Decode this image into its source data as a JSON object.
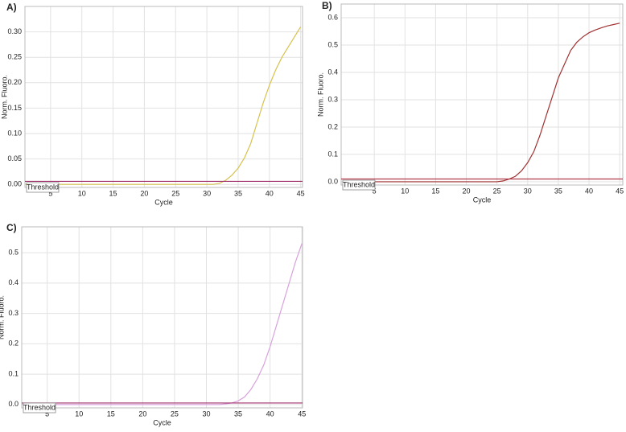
{
  "chart_data": [
    {
      "type": "line",
      "label": "A)",
      "xlabel": "Cycle",
      "ylabel": "Norm. Fluoro.",
      "xlim": [
        0.9,
        45.3
      ],
      "ylim": [
        -0.006,
        0.35
      ],
      "grid": true,
      "xticks": [
        5,
        10,
        15,
        20,
        25,
        30,
        35,
        40,
        45
      ],
      "yticks": [
        {
          "value": 0,
          "label": "0.00"
        },
        0.05,
        {
          "value": 0.1,
          "label": "0.10"
        },
        0.15,
        {
          "value": 0.2,
          "label": "0.20"
        },
        0.25,
        {
          "value": 0.3,
          "label": "0.30"
        }
      ],
      "threshold": {
        "label": "Threshold",
        "value": 0.006,
        "color": "#a0306a"
      },
      "x": [
        1,
        2,
        3,
        4,
        5,
        6,
        7,
        8,
        9,
        10,
        11,
        12,
        13,
        14,
        15,
        16,
        17,
        18,
        19,
        20,
        21,
        22,
        23,
        24,
        25,
        26,
        27,
        28,
        29,
        30,
        31,
        32,
        33,
        34,
        35,
        36,
        37,
        38,
        39,
        40,
        41,
        42,
        43,
        44,
        45
      ],
      "series": [
        {
          "color": "#d6c24e",
          "values": [
            0,
            0,
            0,
            0,
            0,
            0,
            0,
            0,
            0,
            0,
            0,
            0,
            0,
            0,
            0,
            0,
            0,
            0,
            0,
            0,
            0,
            0,
            0,
            0,
            0,
            0,
            0,
            0,
            0,
            0,
            0,
            0.002,
            0.008,
            0.018,
            0.032,
            0.052,
            0.08,
            0.12,
            0.16,
            0.195,
            0.225,
            0.25,
            0.27,
            0.29,
            0.31
          ]
        }
      ]
    },
    {
      "type": "line",
      "label": "B)",
      "xlabel": "Cycle",
      "ylabel": "Norm. Fluoro.",
      "xlim": [
        -0.4,
        45.5
      ],
      "ylim": [
        -0.012,
        0.65
      ],
      "grid": true,
      "xticks": [
        5,
        10,
        15,
        20,
        25,
        30,
        35,
        40,
        45
      ],
      "yticks": [
        {
          "value": 0,
          "label": "0.0"
        },
        0.1,
        0.2,
        0.3,
        0.4,
        0.5,
        0.6
      ],
      "threshold": {
        "label": "Threshold",
        "value": 0.01,
        "color": "#b03a4a"
      },
      "x": [
        1,
        2,
        3,
        4,
        5,
        6,
        7,
        8,
        9,
        10,
        11,
        12,
        13,
        14,
        15,
        16,
        17,
        18,
        19,
        20,
        21,
        22,
        23,
        24,
        25,
        26,
        27,
        28,
        29,
        30,
        31,
        32,
        33,
        34,
        35,
        36,
        37,
        38,
        39,
        40,
        41,
        42,
        43,
        44,
        45
      ],
      "series": [
        {
          "color": "#a03232",
          "values": [
            0,
            0,
            0,
            0,
            0,
            0,
            0,
            0,
            0,
            0,
            0,
            0,
            0,
            0,
            0,
            0,
            0,
            0,
            0,
            0,
            0,
            0,
            0,
            0,
            0,
            0.003,
            0.01,
            0.02,
            0.04,
            0.07,
            0.11,
            0.17,
            0.24,
            0.31,
            0.38,
            0.43,
            0.48,
            0.51,
            0.53,
            0.545,
            0.555,
            0.563,
            0.57,
            0.575,
            0.58
          ]
        }
      ]
    },
    {
      "type": "line",
      "label": "C)",
      "xlabel": "Cycle",
      "ylabel": "Norm. Fluoro.",
      "xlim": [
        1,
        45.1
      ],
      "ylim": [
        -0.011,
        0.585
      ],
      "grid": true,
      "xticks": [
        5,
        10,
        15,
        20,
        25,
        30,
        35,
        40,
        45
      ],
      "yticks": [
        {
          "value": 0,
          "label": "0.0"
        },
        0.1,
        0.2,
        0.3,
        0.4,
        0.5
      ],
      "threshold": {
        "label": "Threshold",
        "value": 0.005,
        "color": "#a0306a"
      },
      "x": [
        1,
        2,
        3,
        4,
        5,
        6,
        7,
        8,
        9,
        10,
        11,
        12,
        13,
        14,
        15,
        16,
        17,
        18,
        19,
        20,
        21,
        22,
        23,
        24,
        25,
        26,
        27,
        28,
        29,
        30,
        31,
        32,
        33,
        34,
        35,
        36,
        37,
        38,
        39,
        40,
        41,
        42,
        43,
        44,
        45
      ],
      "series": [
        {
          "color": "#d8a2dc",
          "values": [
            0,
            0,
            0,
            0,
            0,
            0,
            0,
            0,
            0,
            0,
            0,
            0,
            0,
            0,
            0,
            0,
            0,
            0,
            0,
            0,
            0,
            0,
            0,
            0,
            0,
            0,
            0,
            0,
            0,
            0,
            0,
            0,
            0.002,
            0.005,
            0.012,
            0.025,
            0.05,
            0.085,
            0.13,
            0.19,
            0.26,
            0.33,
            0.4,
            0.47,
            0.53
          ]
        }
      ]
    }
  ]
}
